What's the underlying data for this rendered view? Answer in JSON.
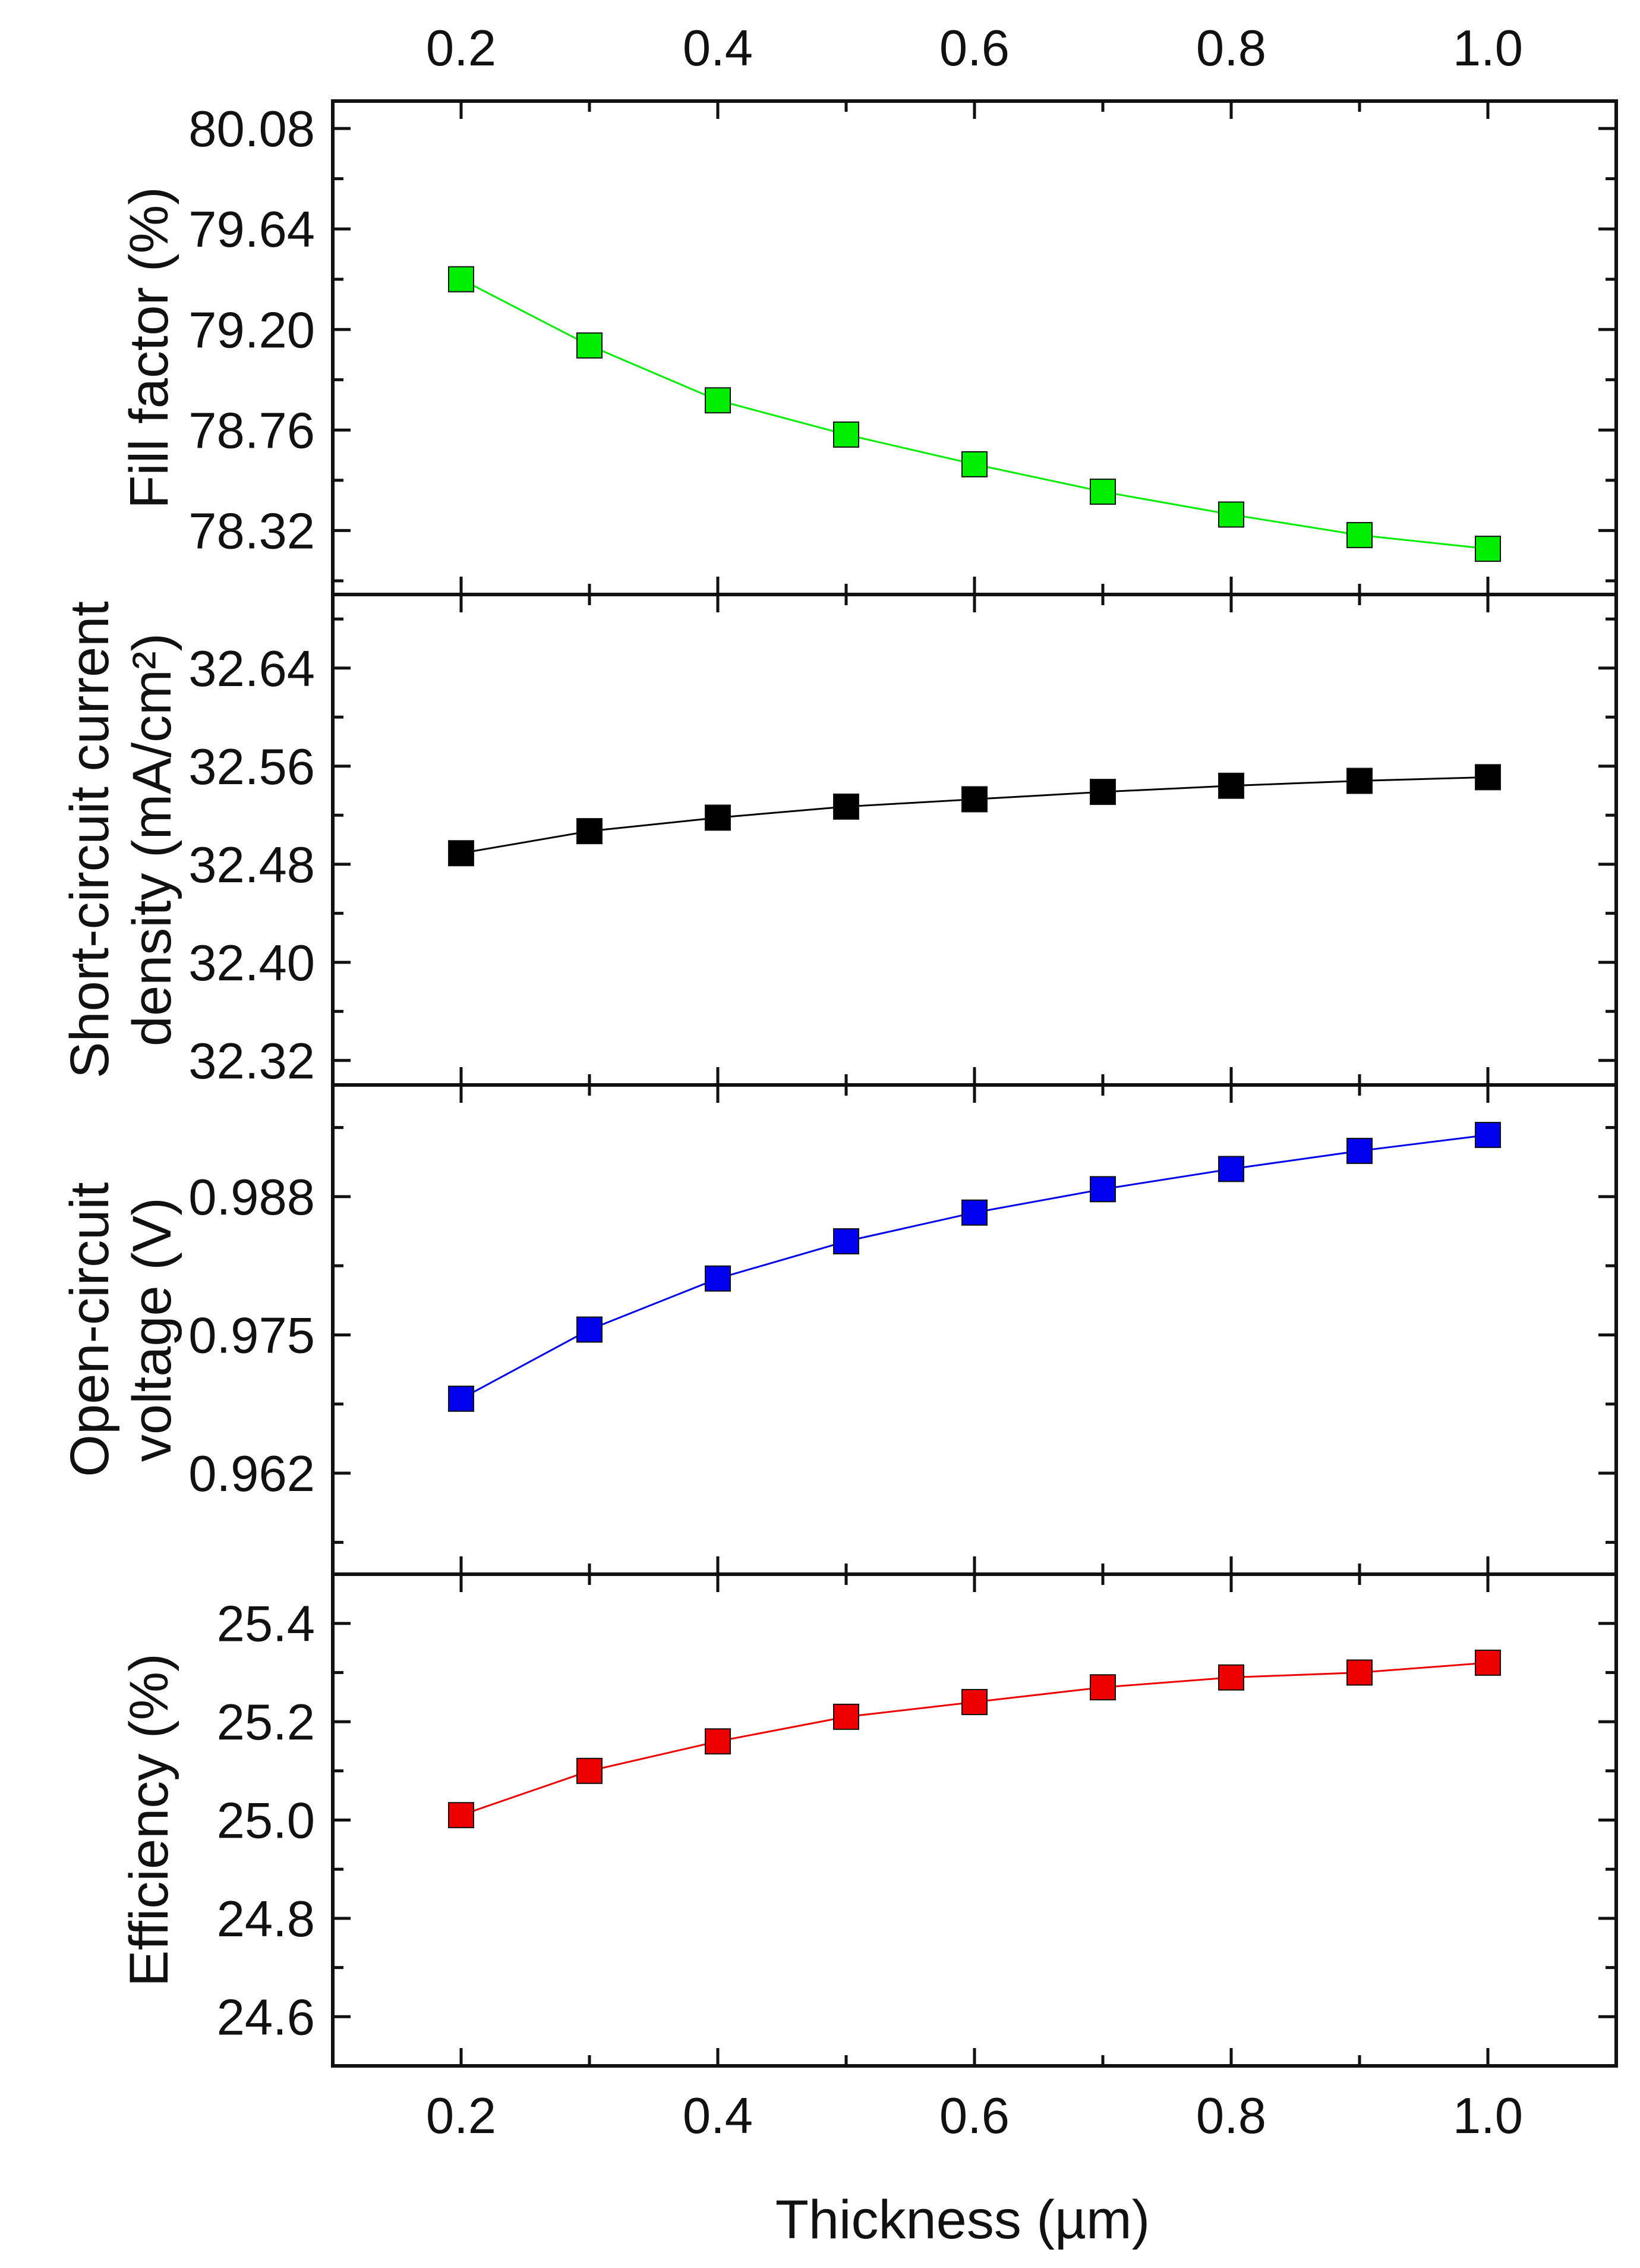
{
  "chart_data": {
    "type": "line",
    "x": [
      0.2,
      0.3,
      0.4,
      0.5,
      0.6,
      0.7,
      0.8,
      0.9,
      1.0
    ],
    "xlim": [
      0.1,
      1.1
    ],
    "xticks": [
      "0.2",
      "0.4",
      "0.6",
      "0.8",
      "1.0"
    ],
    "xlabel": "Thickness (µm)",
    "panels": [
      {
        "id": "ff",
        "ylabel": [
          "Fill factor (%)"
        ],
        "ylim": [
          78.04,
          80.2
        ],
        "yticks": [
          "78.32",
          "78.76",
          "79.20",
          "79.64",
          "80.08"
        ],
        "color": "#00ee00",
        "values": [
          79.42,
          79.13,
          78.89,
          78.74,
          78.61,
          78.49,
          78.39,
          78.3,
          78.24
        ]
      },
      {
        "id": "jsc",
        "ylabel": [
          "Short-circuit current",
          "density (mA/cm²)"
        ],
        "ylim": [
          32.3,
          32.7
        ],
        "yticks": [
          "32.32",
          "32.40",
          "32.48",
          "32.56",
          "32.64"
        ],
        "color": "#000000",
        "values": [
          32.489,
          32.507,
          32.518,
          32.527,
          32.533,
          32.539,
          32.544,
          32.548,
          32.551
        ]
      },
      {
        "id": "voc",
        "ylabel": [
          "Open-circuit",
          "voltage (V)"
        ],
        "ylim": [
          0.9525,
          0.9985
        ],
        "yticks": [
          "0.962",
          "0.975",
          "0.988"
        ],
        "color": "#0000ee",
        "values": [
          0.969,
          0.9755,
          0.9803,
          0.9838,
          0.9865,
          0.9887,
          0.9906,
          0.9923,
          0.9938
        ]
      },
      {
        "id": "eff",
        "ylabel": [
          "Efficiency (%)"
        ],
        "ylim": [
          24.5,
          25.5
        ],
        "yticks": [
          "24.6",
          "24.8",
          "25.0",
          "25.2",
          "25.4"
        ],
        "color": "#ee0000",
        "values": [
          25.01,
          25.1,
          25.16,
          25.21,
          25.24,
          25.27,
          25.29,
          25.3,
          25.32
        ]
      }
    ]
  }
}
